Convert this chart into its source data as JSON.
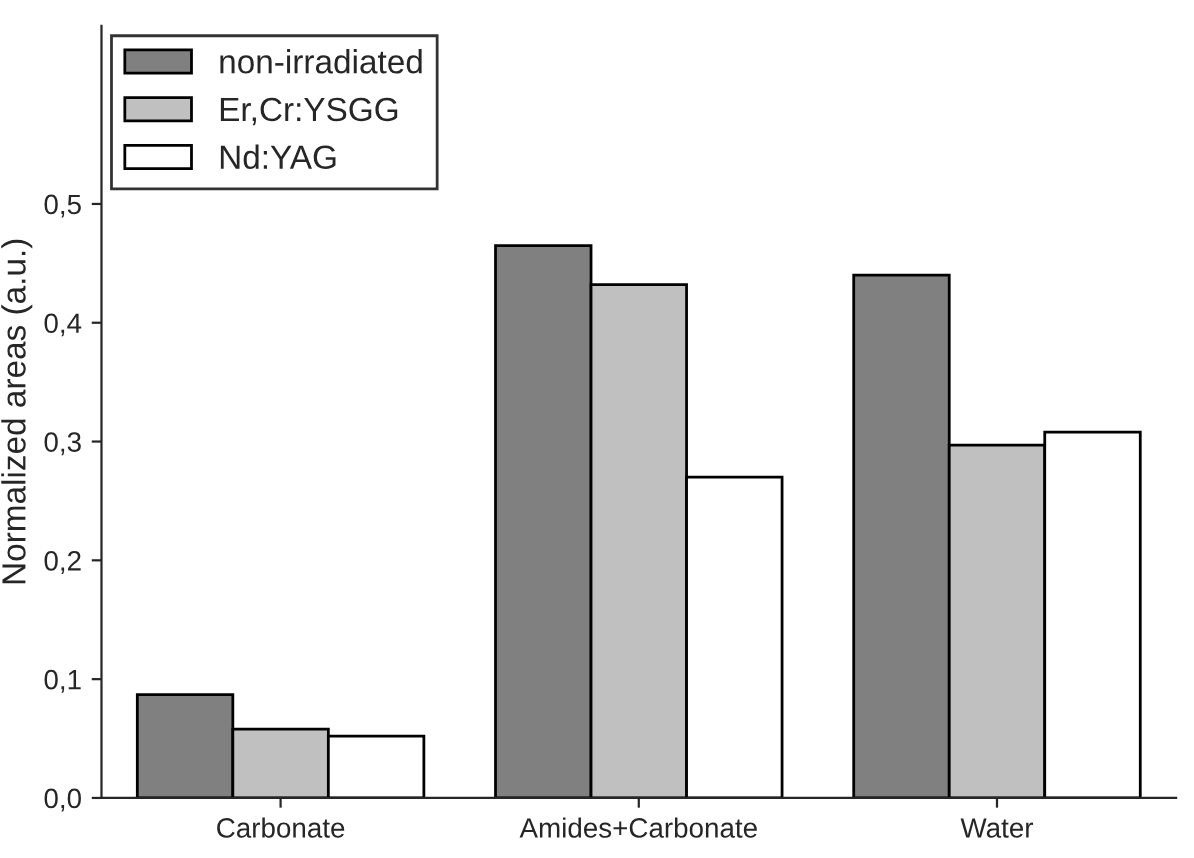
{
  "chart_data": {
    "type": "bar",
    "ylabel": "Normalized areas (a.u.)",
    "categories": [
      "Carbonate",
      "Amides+Carbonate",
      "Water"
    ],
    "series": [
      {
        "name": "non-irradiated",
        "color": "#808080",
        "values": [
          0.087,
          0.465,
          0.44
        ]
      },
      {
        "name": "Er,Cr:YSGG",
        "color": "#c0c0c0",
        "values": [
          0.058,
          0.432,
          0.297
        ]
      },
      {
        "name": "Nd:YAG",
        "color": "#ffffff",
        "values": [
          0.052,
          0.27,
          0.308
        ]
      }
    ],
    "ylim": [
      0,
      0.65
    ],
    "yticks": [
      {
        "value": 0,
        "label": "0,0"
      },
      {
        "value": 0.1,
        "label": "0,1"
      },
      {
        "value": 0.2,
        "label": "0,2"
      },
      {
        "value": 0.3,
        "label": "0,3"
      },
      {
        "value": 0.4,
        "label": "0,4"
      },
      {
        "value": 0.5,
        "label": "0,5"
      }
    ],
    "legend": "top left",
    "grid": false
  }
}
